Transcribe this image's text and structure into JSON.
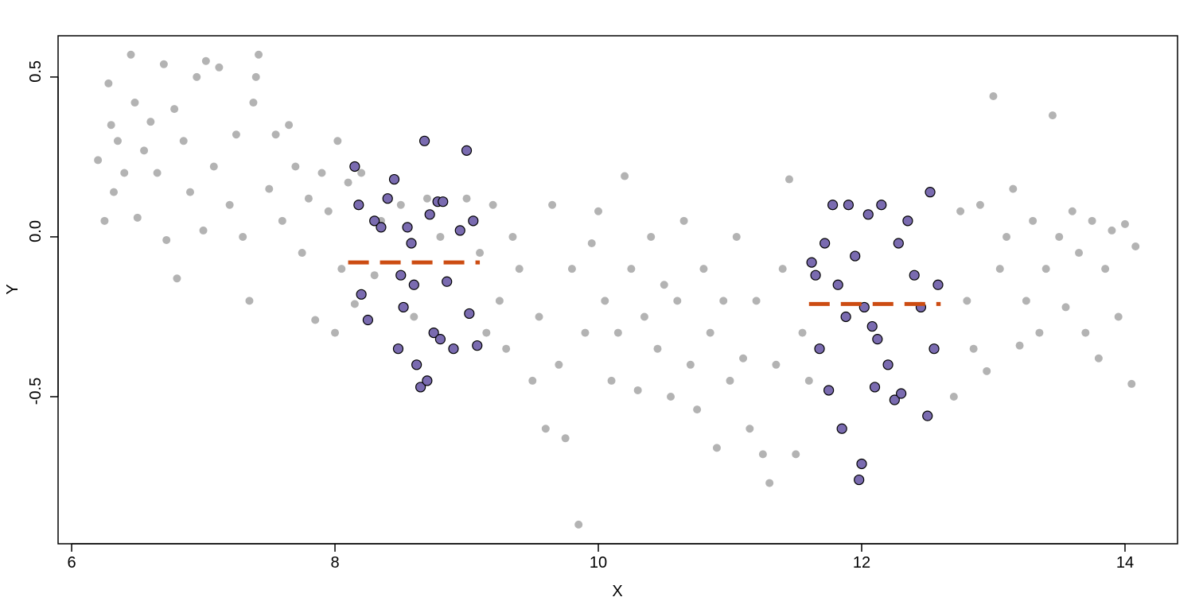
{
  "chart_data": {
    "type": "scatter",
    "x_label": "X",
    "y_label": "Y",
    "xlim": [
      5.897,
      14.399
    ],
    "ylim": [
      -0.96,
      0.629
    ],
    "xticks": [
      6,
      8,
      10,
      12,
      14
    ],
    "yticks": [
      -0.5,
      {
        "value": 0,
        "label": "0.0"
      },
      0.5
    ],
    "series": [
      {
        "color": "#b3b3b3",
        "x": [
          6.2,
          6.25,
          6.28,
          6.3,
          6.32,
          6.35,
          6.4,
          6.45,
          6.48,
          6.5,
          6.55,
          6.6,
          6.65,
          6.7,
          6.72,
          6.78,
          6.8,
          6.85,
          6.9,
          6.95,
          7.0,
          7.02,
          7.08,
          7.12,
          7.2,
          7.25,
          7.3,
          7.35,
          7.38,
          7.4,
          7.42,
          7.5,
          7.55,
          7.6,
          7.65,
          7.7,
          7.75,
          7.8,
          7.85,
          7.9,
          7.95,
          8.0,
          8.02,
          8.05,
          8.1,
          8.15,
          8.2,
          8.3,
          8.35,
          8.5,
          8.6,
          8.7,
          8.8,
          9.0,
          9.1,
          9.15,
          9.2,
          9.25,
          9.3,
          9.35,
          9.4,
          9.5,
          9.55,
          9.6,
          9.65,
          9.7,
          9.75,
          9.8,
          9.85,
          9.9,
          9.95,
          10.0,
          10.05,
          10.1,
          10.15,
          10.2,
          10.25,
          10.3,
          10.35,
          10.4,
          10.45,
          10.5,
          10.55,
          10.6,
          10.65,
          10.7,
          10.75,
          10.8,
          10.85,
          10.9,
          10.95,
          11.0,
          11.05,
          11.1,
          11.15,
          11.2,
          11.25,
          11.3,
          11.35,
          11.4,
          11.45,
          11.5,
          11.55,
          11.6,
          12.7,
          12.75,
          12.8,
          12.85,
          12.9,
          12.95,
          13.0,
          13.05,
          13.1,
          13.15,
          13.2,
          13.25,
          13.3,
          13.35,
          13.4,
          13.45,
          13.5,
          13.55,
          13.6,
          13.65,
          13.7,
          13.75,
          13.8,
          13.85,
          13.9,
          13.95,
          14.0,
          14.05,
          14.08
        ],
        "values": [
          0.24,
          0.05,
          0.48,
          0.35,
          0.14,
          0.3,
          0.2,
          0.57,
          0.42,
          0.06,
          0.27,
          0.36,
          0.2,
          0.54,
          -0.01,
          0.4,
          -0.13,
          0.3,
          0.14,
          0.5,
          0.02,
          0.55,
          0.22,
          0.53,
          0.1,
          0.32,
          0.0,
          -0.2,
          0.42,
          0.5,
          0.57,
          0.15,
          0.32,
          0.05,
          0.35,
          0.22,
          -0.05,
          0.12,
          -0.26,
          0.2,
          0.08,
          -0.3,
          0.3,
          -0.1,
          0.17,
          -0.21,
          0.2,
          -0.12,
          0.05,
          0.1,
          -0.25,
          0.12,
          0.0,
          0.12,
          -0.05,
          -0.3,
          0.1,
          -0.2,
          -0.35,
          0.0,
          -0.1,
          -0.45,
          -0.25,
          -0.6,
          0.1,
          -0.4,
          -0.63,
          -0.1,
          -0.9,
          -0.3,
          -0.02,
          0.08,
          -0.2,
          -0.45,
          -0.3,
          0.19,
          -0.1,
          -0.48,
          -0.25,
          0.0,
          -0.35,
          -0.15,
          -0.5,
          -0.2,
          0.05,
          -0.4,
          -0.54,
          -0.1,
          -0.3,
          -0.66,
          -0.2,
          -0.45,
          0.0,
          -0.38,
          -0.6,
          -0.2,
          -0.68,
          -0.77,
          -0.4,
          -0.1,
          0.18,
          -0.68,
          -0.3,
          -0.45,
          -0.5,
          0.08,
          -0.2,
          -0.35,
          0.1,
          -0.42,
          0.44,
          -0.1,
          0.0,
          0.15,
          -0.34,
          -0.2,
          0.05,
          -0.3,
          -0.1,
          0.38,
          0.0,
          -0.22,
          0.08,
          -0.05,
          -0.3,
          0.05,
          -0.38,
          -0.1,
          0.02,
          -0.25,
          0.04,
          -0.46,
          -0.03
        ]
      },
      {
        "color": "#7a6bb0",
        "x": [
          8.15,
          8.18,
          8.2,
          8.25,
          8.3,
          8.4,
          8.45,
          8.48,
          8.5,
          8.52,
          8.55,
          8.6,
          8.62,
          8.65,
          8.68,
          8.7,
          8.72,
          8.75,
          8.78,
          8.8,
          8.85,
          8.9,
          8.95,
          9.0,
          9.02,
          9.05,
          9.08,
          8.35,
          8.58,
          8.82,
          11.62,
          11.68,
          11.72,
          11.75,
          11.78,
          11.82,
          11.85,
          11.88,
          11.9,
          11.95,
          11.98,
          12.0,
          12.02,
          12.05,
          12.1,
          12.12,
          12.15,
          12.2,
          12.25,
          12.28,
          12.3,
          12.35,
          12.4,
          12.45,
          12.5,
          12.52,
          12.55,
          12.58,
          11.65,
          12.08
        ],
        "values": [
          0.22,
          0.1,
          -0.18,
          -0.26,
          0.05,
          0.12,
          0.18,
          -0.35,
          -0.12,
          -0.22,
          0.03,
          -0.15,
          -0.4,
          -0.47,
          0.3,
          -0.45,
          0.07,
          -0.3,
          0.11,
          -0.32,
          -0.14,
          -0.35,
          0.02,
          0.27,
          -0.24,
          0.05,
          -0.34,
          0.03,
          -0.02,
          0.11,
          -0.08,
          -0.35,
          -0.02,
          -0.48,
          0.1,
          -0.15,
          -0.6,
          -0.25,
          0.1,
          -0.06,
          -0.76,
          -0.71,
          -0.22,
          0.07,
          -0.47,
          -0.32,
          0.1,
          -0.4,
          -0.51,
          -0.02,
          -0.49,
          0.05,
          -0.12,
          -0.22,
          -0.56,
          0.14,
          -0.35,
          -0.15,
          -0.12,
          -0.28
        ]
      }
    ],
    "lines": [
      {
        "color": "#cc4c12",
        "x": [
          8.1,
          9.1
        ],
        "y": -0.08
      },
      {
        "color": "#cc4c12",
        "x": [
          11.6,
          12.6
        ],
        "y": -0.21
      }
    ]
  }
}
